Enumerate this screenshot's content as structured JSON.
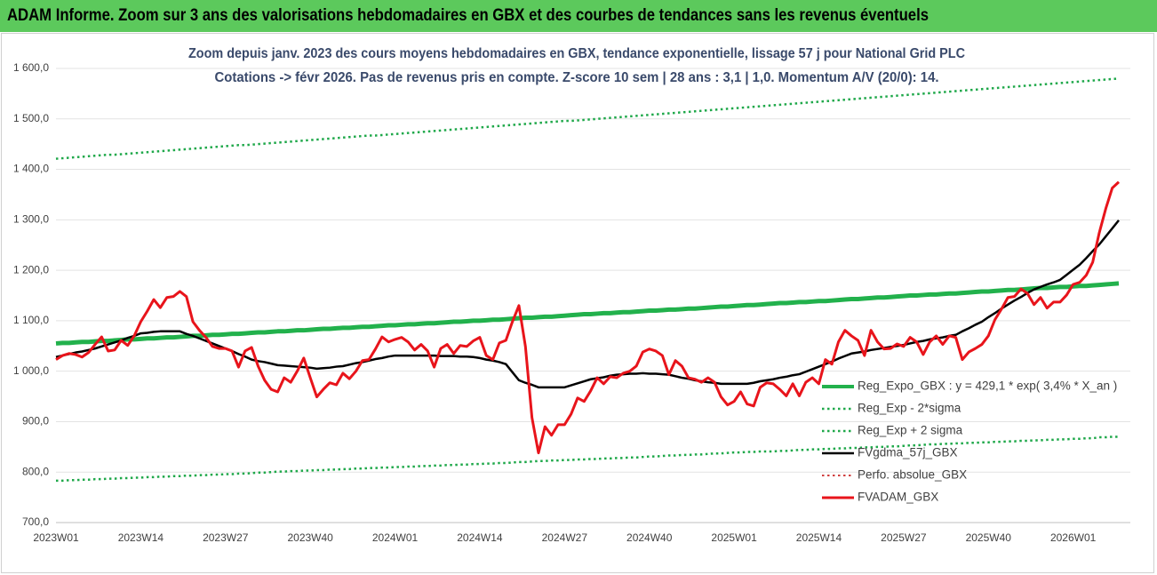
{
  "chart_data": {
    "type": "line",
    "header": "ADAM Informe. Zoom sur 3 ans des valorisations hebdomadaires en GBX et des courbes de tendances sans les revenus éventuels",
    "title": [
      "Zoom depuis janv. 2023 des cours moyens hebdomadaires en GBX, tendance exponentielle, lissage 57 j pour National Grid PLC",
      "Cotations -> févr 2026. Pas de revenus pris en compte. Z-score 10 sem | 28 ans : 3,1 | 1,0. Momentum A/V (20/0): 14."
    ],
    "categories": [
      "2023W01",
      null,
      null,
      null,
      null,
      null,
      null,
      null,
      null,
      null,
      null,
      null,
      null,
      "2023W14",
      null,
      null,
      null,
      null,
      null,
      null,
      null,
      null,
      null,
      null,
      null,
      null,
      "2023W27",
      null,
      null,
      null,
      null,
      null,
      null,
      null,
      null,
      null,
      null,
      null,
      null,
      "2023W40",
      null,
      null,
      null,
      null,
      null,
      null,
      null,
      null,
      null,
      null,
      null,
      null,
      "2024W01",
      null,
      null,
      null,
      null,
      null,
      null,
      null,
      null,
      null,
      null,
      null,
      null,
      "2024W14",
      null,
      null,
      null,
      null,
      null,
      null,
      null,
      null,
      null,
      null,
      null,
      null,
      "2024W27",
      null,
      null,
      null,
      null,
      null,
      null,
      null,
      null,
      null,
      null,
      null,
      null,
      "2024W40",
      null,
      null,
      null,
      null,
      null,
      null,
      null,
      null,
      null,
      null,
      null,
      null,
      "2025W01",
      null,
      null,
      null,
      null,
      null,
      null,
      null,
      null,
      null,
      null,
      null,
      null,
      "2025W14",
      null,
      null,
      null,
      null,
      null,
      null,
      null,
      null,
      null,
      null,
      null,
      null,
      "2025W27",
      null,
      null,
      null,
      null,
      null,
      null,
      null,
      null,
      null,
      null,
      null,
      null,
      "2025W40",
      null,
      null,
      null,
      null,
      null,
      null,
      null,
      null,
      null,
      null,
      null,
      null,
      "2026W01",
      null,
      null,
      null,
      null,
      null,
      null,
      null
    ],
    "ylim": [
      700,
      1600
    ],
    "yticks": [
      {
        "value": 700,
        "label": "700,0"
      },
      {
        "value": 800,
        "label": "800,0"
      },
      {
        "value": 900,
        "label": "900,0"
      },
      {
        "value": 1000,
        "label": "1 000,0"
      },
      {
        "value": 1100,
        "label": "1 100,0"
      },
      {
        "value": 1200,
        "label": "1 200,0"
      },
      {
        "value": 1300,
        "label": "1 300,0"
      },
      {
        "value": 1400,
        "label": "1 400,0"
      },
      {
        "value": 1500,
        "label": "1 500,0"
      },
      {
        "value": 1600,
        "label": "1 600,0"
      }
    ],
    "grid": true,
    "legend": "lower right",
    "series": [
      {
        "name": "Reg_Expo_GBX : y = 429,1 * exp( 3,4% *  X_an )",
        "color": "#22b14c",
        "width": 5,
        "dash": "solid",
        "values": [
          1055,
          1056,
          1056,
          1057,
          1058,
          1058,
          1059,
          1060,
          1060,
          1061,
          1062,
          1063,
          1063,
          1064,
          1065,
          1065,
          1066,
          1067,
          1067,
          1068,
          1069,
          1070,
          1070,
          1071,
          1072,
          1072,
          1073,
          1074,
          1074,
          1075,
          1076,
          1077,
          1077,
          1078,
          1079,
          1079,
          1080,
          1081,
          1081,
          1082,
          1083,
          1084,
          1084,
          1085,
          1086,
          1086,
          1087,
          1088,
          1088,
          1089,
          1090,
          1091,
          1091,
          1092,
          1093,
          1093,
          1094,
          1095,
          1095,
          1096,
          1097,
          1098,
          1098,
          1099,
          1100,
          1100,
          1101,
          1102,
          1102,
          1103,
          1104,
          1105,
          1106,
          1106,
          1107,
          1108,
          1108,
          1109,
          1110,
          1111,
          1112,
          1113,
          1113,
          1114,
          1115,
          1115,
          1116,
          1117,
          1117,
          1118,
          1119,
          1120,
          1120,
          1121,
          1122,
          1122,
          1123,
          1124,
          1124,
          1125,
          1126,
          1127,
          1128,
          1128,
          1129,
          1130,
          1131,
          1131,
          1132,
          1133,
          1134,
          1135,
          1135,
          1136,
          1137,
          1137,
          1138,
          1139,
          1139,
          1140,
          1141,
          1142,
          1143,
          1143,
          1144,
          1145,
          1146,
          1146,
          1147,
          1148,
          1149,
          1150,
          1150,
          1151,
          1152,
          1152,
          1153,
          1154,
          1154,
          1155,
          1156,
          1157,
          1158,
          1158,
          1159,
          1160,
          1161,
          1161,
          1162,
          1163,
          1164,
          1165,
          1165,
          1166,
          1167,
          1167,
          1168,
          1169,
          1169,
          1170,
          1171,
          1172,
          1173,
          1174
        ]
      },
      {
        "name": "Reg_Exp - 2*sigma",
        "color": "#1fa84a",
        "width": 2.5,
        "dash": "dotted",
        "values": [
          783,
          783,
          784,
          784,
          785,
          785,
          786,
          786,
          787,
          787,
          788,
          788,
          789,
          789,
          790,
          790,
          791,
          791,
          792,
          792,
          793,
          793,
          794,
          794,
          795,
          795,
          796,
          796,
          797,
          797,
          798,
          799,
          799,
          800,
          801,
          801,
          802,
          802,
          803,
          803,
          804,
          804,
          805,
          805,
          806,
          806,
          807,
          807,
          808,
          808,
          809,
          809,
          810,
          810,
          811,
          811,
          812,
          812,
          813,
          813,
          814,
          814,
          815,
          815,
          816,
          816,
          817,
          817,
          818,
          818,
          819,
          820,
          820,
          821,
          822,
          822,
          823,
          823,
          824,
          824,
          825,
          825,
          826,
          826,
          827,
          827,
          828,
          828,
          829,
          829,
          830,
          831,
          831,
          832,
          833,
          833,
          834,
          834,
          835,
          835,
          836,
          837,
          837,
          838,
          839,
          839,
          840,
          840,
          841,
          841,
          841,
          842,
          842,
          843,
          844,
          844,
          845,
          845,
          846,
          846,
          847,
          847,
          848,
          848,
          849,
          849,
          850,
          850,
          851,
          851,
          852,
          853,
          853,
          854,
          855,
          855,
          856,
          856,
          857,
          857,
          858,
          858,
          859,
          859,
          860,
          860,
          861,
          861,
          862,
          862,
          863,
          863,
          864,
          864,
          865,
          865,
          866,
          866,
          867,
          867,
          869,
          869,
          870,
          870
        ]
      },
      {
        "name": "Reg_Exp + 2 sigma",
        "color": "#1fa84a",
        "width": 2.5,
        "dash": "dotted",
        "values": [
          1421,
          1422,
          1423,
          1424,
          1425,
          1426,
          1427,
          1428,
          1429,
          1429,
          1430,
          1431,
          1432,
          1433,
          1434,
          1435,
          1436,
          1437,
          1438,
          1439,
          1440,
          1441,
          1442,
          1443,
          1444,
          1445,
          1446,
          1447,
          1448,
          1448,
          1449,
          1450,
          1451,
          1452,
          1453,
          1454,
          1455,
          1456,
          1457,
          1458,
          1459,
          1460,
          1461,
          1462,
          1463,
          1464,
          1465,
          1466,
          1467,
          1467,
          1468,
          1469,
          1470,
          1471,
          1472,
          1473,
          1474,
          1475,
          1476,
          1477,
          1478,
          1479,
          1480,
          1481,
          1482,
          1483,
          1484,
          1485,
          1486,
          1487,
          1488,
          1489,
          1490,
          1491,
          1492,
          1493,
          1494,
          1495,
          1496,
          1496,
          1497,
          1498,
          1499,
          1500,
          1501,
          1502,
          1503,
          1504,
          1505,
          1506,
          1507,
          1508,
          1509,
          1510,
          1511,
          1512,
          1513,
          1514,
          1515,
          1516,
          1517,
          1518,
          1519,
          1520,
          1521,
          1522,
          1523,
          1524,
          1525,
          1526,
          1527,
          1528,
          1529,
          1530,
          1531,
          1532,
          1533,
          1534,
          1535,
          1536,
          1537,
          1538,
          1539,
          1540,
          1541,
          1542,
          1543,
          1544,
          1545,
          1546,
          1547,
          1548,
          1549,
          1550,
          1551,
          1552,
          1553,
          1554,
          1555,
          1556,
          1557,
          1558,
          1559,
          1560,
          1561,
          1562,
          1563,
          1564,
          1565,
          1566,
          1567,
          1568,
          1569,
          1570,
          1571,
          1572,
          1573,
          1574,
          1575,
          1576,
          1577,
          1578,
          1579,
          1580
        ]
      },
      {
        "name": "FVgdma_57j_GBX",
        "color": "#000000",
        "width": 2.5,
        "dash": "solid",
        "values": [
          1028,
          1031,
          1034,
          1037,
          1039,
          1042,
          1045,
          1049,
          1053,
          1057,
          1061,
          1066,
          1070,
          1075,
          1076,
          1078,
          1079,
          1079,
          1079,
          1079,
          1074,
          1070,
          1065,
          1060,
          1055,
          1050,
          1045,
          1040,
          1034,
          1029,
          1023,
          1020,
          1018,
          1015,
          1012,
          1011,
          1010,
          1009,
          1008,
          1007,
          1005,
          1006,
          1007,
          1009,
          1010,
          1013,
          1016,
          1018,
          1021,
          1024,
          1026,
          1029,
          1031,
          1031,
          1031,
          1031,
          1031,
          1031,
          1031,
          1030,
          1030,
          1030,
          1029,
          1029,
          1028,
          1026,
          1023,
          1021,
          1018,
          1014,
          998,
          982,
          977,
          973,
          968,
          968,
          968,
          968,
          968,
          972,
          976,
          980,
          984,
          986,
          988,
          991,
          993,
          994,
          995,
          995,
          996,
          995,
          995,
          994,
          993,
          990,
          987,
          985,
          982,
          980,
          978,
          977,
          975,
          975,
          975,
          975,
          975,
          977,
          980,
          982,
          984,
          987,
          989,
          992,
          994,
          999,
          1004,
          1009,
          1014,
          1019,
          1025,
          1030,
          1035,
          1037,
          1039,
          1042,
          1044,
          1046,
          1048,
          1050,
          1052,
          1055,
          1058,
          1060,
          1063,
          1065,
          1067,
          1070,
          1072,
          1079,
          1085,
          1092,
          1098,
          1107,
          1115,
          1124,
          1132,
          1140,
          1147,
          1155,
          1162,
          1167,
          1172,
          1176,
          1181,
          1191,
          1201,
          1211,
          1224,
          1238,
          1251,
          1267,
          1283,
          1299
        ]
      },
      {
        "name": "Perfo. absolue_GBX",
        "color": "#c00000",
        "width": 1.5,
        "dash": "dotted",
        "values": [
          null,
          null,
          null,
          null,
          null,
          null,
          null,
          null,
          null,
          null,
          null,
          null,
          null,
          null,
          null,
          null,
          null,
          null,
          null,
          null,
          null,
          null,
          null,
          null,
          null,
          null,
          null,
          null,
          null,
          null,
          null,
          null,
          null,
          null,
          null,
          null,
          null,
          null,
          null,
          null,
          null,
          null,
          null,
          null,
          null,
          null,
          null,
          null,
          null,
          null,
          null,
          null,
          null,
          null,
          null,
          null,
          null,
          null,
          null,
          null,
          null,
          null,
          null,
          null,
          null,
          null,
          null,
          null,
          null,
          null,
          null,
          null,
          null,
          null,
          null,
          null,
          null,
          null,
          null,
          null,
          null,
          null,
          null,
          null,
          null,
          null,
          null,
          null,
          null,
          null,
          null,
          null,
          null,
          null,
          null,
          null,
          null,
          null,
          null,
          null,
          null,
          null,
          null,
          null,
          null,
          null,
          null,
          null,
          null,
          null,
          null,
          null,
          null,
          null,
          null,
          null,
          null,
          null,
          null,
          null,
          null,
          null,
          null,
          null,
          null,
          null,
          null,
          null,
          null,
          null,
          null,
          null,
          null,
          null,
          null,
          null,
          null,
          null,
          null,
          null,
          null,
          null,
          null,
          null,
          null,
          null,
          null,
          null,
          null,
          null,
          null,
          null,
          null,
          null,
          null,
          null,
          null,
          null,
          null,
          null,
          null,
          null,
          null,
          null
        ]
      },
      {
        "name": "FVADAM_GBX",
        "color": "#e8141b",
        "width": 3,
        "dash": "solid",
        "values": [
          1023,
          1031,
          1035,
          1033,
          1028,
          1037,
          1053,
          1068,
          1040,
          1042,
          1061,
          1051,
          1070,
          1098,
          1119,
          1142,
          1126,
          1146,
          1148,
          1158,
          1148,
          1098,
          1081,
          1067,
          1049,
          1045,
          1045,
          1040,
          1008,
          1040,
          1047,
          1010,
          982,
          964,
          959,
          987,
          978,
          1000,
          1026,
          987,
          949,
          964,
          977,
          973,
          996,
          985,
          1000,
          1021,
          1023,
          1044,
          1068,
          1058,
          1063,
          1067,
          1058,
          1042,
          1053,
          1040,
          1008,
          1045,
          1053,
          1035,
          1051,
          1049,
          1060,
          1067,
          1031,
          1023,
          1056,
          1061,
          1098,
          1130,
          1049,
          908,
          838,
          890,
          873,
          894,
          894,
          915,
          947,
          940,
          961,
          987,
          975,
          989,
          987,
          996,
          1000,
          1010,
          1038,
          1044,
          1040,
          1031,
          993,
          1021,
          1010,
          987,
          984,
          978,
          987,
          978,
          949,
          933,
          940,
          959,
          935,
          931,
          968,
          977,
          975,
          964,
          951,
          975,
          951,
          978,
          987,
          975,
          1023,
          1014,
          1058,
          1081,
          1070,
          1061,
          1031,
          1081,
          1058,
          1044,
          1045,
          1054,
          1049,
          1067,
          1058,
          1033,
          1058,
          1070,
          1053,
          1070,
          1067,
          1023,
          1038,
          1045,
          1053,
          1070,
          1102,
          1123,
          1146,
          1148,
          1163,
          1154,
          1132,
          1146,
          1125,
          1137,
          1137,
          1151,
          1172,
          1176,
          1190,
          1216,
          1274,
          1322,
          1363,
          1375
        ]
      }
    ]
  }
}
